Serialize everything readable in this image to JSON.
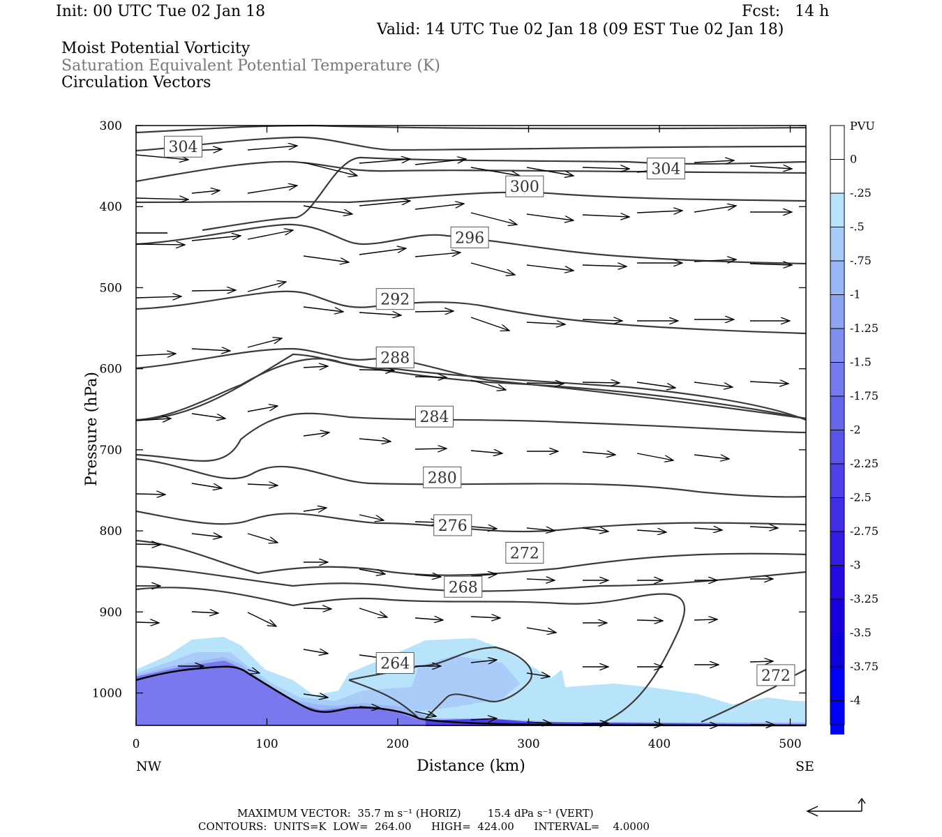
{
  "header": {
    "init": "Init: 00 UTC Tue 02 Jan 18",
    "fcst": "Fcst:   14 h",
    "valid": "Valid: 14 UTC Tue 02 Jan 18 (09 EST Tue 02 Jan 18)",
    "fields": [
      "Moist Potential Vorticity",
      "Saturation Equivalent Potential Temperature (K)",
      "Circulation Vectors"
    ]
  },
  "footer": {
    "max_vector": "MAXIMUM VECTOR:  35.7 m s⁻¹ (HORIZ)        15.4 dPa s⁻¹ (VERT)",
    "contours": "CONTOURS:  UNITS=K  LOW=  264.00      HIGH=  424.00      INTERVAL=    4.0000"
  },
  "colors": {
    "contour": "#3a3a3a",
    "mpv_shades": [
      "#b8e4fb",
      "#a9cdf8",
      "#9ab8f5",
      "#8da4f3",
      "#808ff0",
      "#737bee",
      "#6666ec",
      "#5a53ea",
      "#4d40e8",
      "#402ee6",
      "#331be3",
      "#2608e0",
      "#1b00df",
      "#0d00dd",
      "#0000ff"
    ]
  },
  "chart_data": {
    "type": "cross-section",
    "xlabel": "Distance (km)",
    "ylabel": "Pressure (hPa)",
    "x_ticks": [
      0,
      100,
      200,
      300,
      400,
      500
    ],
    "y_ticks": [
      300,
      400,
      500,
      600,
      700,
      800,
      900,
      1000
    ],
    "xlim": [
      0,
      512
    ],
    "ylim": [
      300,
      1040
    ],
    "x_endpoints": {
      "left": "NW",
      "right": "SE"
    },
    "colorbar": {
      "unit": "PVU",
      "labels": [
        "0",
        "-.25",
        "-.5",
        "-.75",
        "-1",
        "-1.25",
        "-1.5",
        "-1.75",
        "-2",
        "-2.25",
        "-2.5",
        "-2.75",
        "-3",
        "-3.25",
        "-3.5",
        "-3.75",
        "-4"
      ]
    },
    "contour_labels": [
      {
        "value": "304",
        "x": 36,
        "p": 326
      },
      {
        "value": "304",
        "x": 405,
        "p": 353
      },
      {
        "value": "300",
        "x": 297,
        "p": 375
      },
      {
        "value": "296",
        "x": 255,
        "p": 438
      },
      {
        "value": "292",
        "x": 198,
        "p": 514
      },
      {
        "value": "288",
        "x": 198,
        "p": 586
      },
      {
        "value": "284",
        "x": 228,
        "p": 659
      },
      {
        "value": "280",
        "x": 234,
        "p": 734
      },
      {
        "value": "276",
        "x": 242,
        "p": 793
      },
      {
        "value": "272",
        "x": 297,
        "p": 827
      },
      {
        "value": "268",
        "x": 250,
        "p": 869
      },
      {
        "value": "264",
        "x": 198,
        "p": 963
      },
      {
        "value": "272",
        "x": 489,
        "p": 978
      }
    ]
  }
}
